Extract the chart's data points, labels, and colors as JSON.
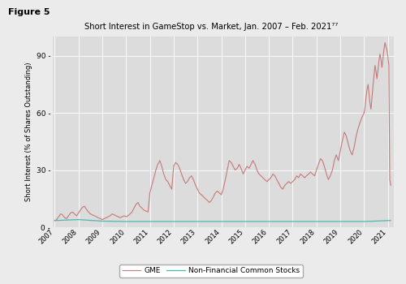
{
  "title": "Short Interest in GameStop vs. Market, Jan. 2007 – Feb. 2021⁷⁷",
  "figure_label": "Figure 5",
  "ylabel": "Short Interest (% of Shares Outstanding)",
  "ylim": [
    0,
    100
  ],
  "yticks": [
    0,
    30,
    60,
    90
  ],
  "gme_color": "#c87878",
  "market_color": "#4db8b0",
  "background_color": "#dcdcdc",
  "fig_background": "#ebebeb",
  "legend_gme": "GME",
  "legend_market": "Non-Financial Common Stocks",
  "gme_data": [
    [
      2007.0,
      3.5
    ],
    [
      2007.08,
      4.0
    ],
    [
      2007.17,
      5.5
    ],
    [
      2007.25,
      7.0
    ],
    [
      2007.33,
      6.5
    ],
    [
      2007.42,
      5.0
    ],
    [
      2007.5,
      4.5
    ],
    [
      2007.58,
      6.0
    ],
    [
      2007.67,
      7.5
    ],
    [
      2007.75,
      8.0
    ],
    [
      2007.83,
      7.0
    ],
    [
      2007.92,
      6.0
    ],
    [
      2008.0,
      7.5
    ],
    [
      2008.08,
      9.0
    ],
    [
      2008.17,
      10.5
    ],
    [
      2008.25,
      11.0
    ],
    [
      2008.33,
      9.5
    ],
    [
      2008.42,
      8.0
    ],
    [
      2008.5,
      7.0
    ],
    [
      2008.58,
      6.5
    ],
    [
      2008.67,
      6.0
    ],
    [
      2008.75,
      5.5
    ],
    [
      2008.83,
      5.0
    ],
    [
      2008.92,
      4.5
    ],
    [
      2009.0,
      4.0
    ],
    [
      2009.08,
      4.5
    ],
    [
      2009.17,
      5.0
    ],
    [
      2009.25,
      5.5
    ],
    [
      2009.33,
      6.0
    ],
    [
      2009.42,
      7.0
    ],
    [
      2009.5,
      6.5
    ],
    [
      2009.58,
      6.0
    ],
    [
      2009.67,
      5.5
    ],
    [
      2009.75,
      5.0
    ],
    [
      2009.83,
      5.5
    ],
    [
      2009.92,
      6.0
    ],
    [
      2010.0,
      5.5
    ],
    [
      2010.08,
      6.0
    ],
    [
      2010.17,
      7.0
    ],
    [
      2010.25,
      8.0
    ],
    [
      2010.33,
      10.0
    ],
    [
      2010.42,
      12.0
    ],
    [
      2010.5,
      13.0
    ],
    [
      2010.58,
      11.0
    ],
    [
      2010.67,
      10.0
    ],
    [
      2010.75,
      9.0
    ],
    [
      2010.83,
      8.5
    ],
    [
      2010.92,
      8.0
    ],
    [
      2011.0,
      18.0
    ],
    [
      2011.08,
      22.0
    ],
    [
      2011.17,
      26.0
    ],
    [
      2011.25,
      30.0
    ],
    [
      2011.33,
      33.0
    ],
    [
      2011.42,
      35.0
    ],
    [
      2011.5,
      32.0
    ],
    [
      2011.58,
      28.0
    ],
    [
      2011.67,
      25.0
    ],
    [
      2011.75,
      24.0
    ],
    [
      2011.83,
      22.0
    ],
    [
      2011.92,
      20.0
    ],
    [
      2012.0,
      32.0
    ],
    [
      2012.08,
      34.0
    ],
    [
      2012.17,
      33.0
    ],
    [
      2012.25,
      31.0
    ],
    [
      2012.33,
      28.0
    ],
    [
      2012.42,
      25.0
    ],
    [
      2012.5,
      23.0
    ],
    [
      2012.58,
      24.0
    ],
    [
      2012.67,
      26.0
    ],
    [
      2012.75,
      27.0
    ],
    [
      2012.83,
      25.0
    ],
    [
      2012.92,
      22.0
    ],
    [
      2013.0,
      20.0
    ],
    [
      2013.08,
      18.0
    ],
    [
      2013.17,
      17.0
    ],
    [
      2013.25,
      16.0
    ],
    [
      2013.33,
      15.0
    ],
    [
      2013.42,
      14.0
    ],
    [
      2013.5,
      13.0
    ],
    [
      2013.58,
      14.0
    ],
    [
      2013.67,
      16.0
    ],
    [
      2013.75,
      18.0
    ],
    [
      2013.83,
      19.0
    ],
    [
      2013.92,
      18.0
    ],
    [
      2014.0,
      17.0
    ],
    [
      2014.08,
      20.0
    ],
    [
      2014.17,
      25.0
    ],
    [
      2014.25,
      30.0
    ],
    [
      2014.33,
      35.0
    ],
    [
      2014.42,
      34.0
    ],
    [
      2014.5,
      32.0
    ],
    [
      2014.58,
      30.0
    ],
    [
      2014.67,
      31.0
    ],
    [
      2014.75,
      33.0
    ],
    [
      2014.83,
      31.0
    ],
    [
      2014.92,
      28.0
    ],
    [
      2015.0,
      30.0
    ],
    [
      2015.08,
      32.0
    ],
    [
      2015.17,
      31.0
    ],
    [
      2015.25,
      33.0
    ],
    [
      2015.33,
      35.0
    ],
    [
      2015.42,
      33.0
    ],
    [
      2015.5,
      30.0
    ],
    [
      2015.58,
      28.0
    ],
    [
      2015.67,
      27.0
    ],
    [
      2015.75,
      26.0
    ],
    [
      2015.83,
      25.0
    ],
    [
      2015.92,
      24.0
    ],
    [
      2016.0,
      25.0
    ],
    [
      2016.08,
      26.0
    ],
    [
      2016.17,
      28.0
    ],
    [
      2016.25,
      27.0
    ],
    [
      2016.33,
      25.0
    ],
    [
      2016.42,
      23.0
    ],
    [
      2016.5,
      21.0
    ],
    [
      2016.58,
      20.0
    ],
    [
      2016.67,
      22.0
    ],
    [
      2016.75,
      23.0
    ],
    [
      2016.83,
      24.0
    ],
    [
      2016.92,
      23.0
    ],
    [
      2017.0,
      24.0
    ],
    [
      2017.08,
      25.0
    ],
    [
      2017.17,
      27.0
    ],
    [
      2017.25,
      26.0
    ],
    [
      2017.33,
      28.0
    ],
    [
      2017.42,
      27.0
    ],
    [
      2017.5,
      26.0
    ],
    [
      2017.58,
      27.0
    ],
    [
      2017.67,
      28.0
    ],
    [
      2017.75,
      29.0
    ],
    [
      2017.83,
      28.0
    ],
    [
      2017.92,
      27.0
    ],
    [
      2018.0,
      30.0
    ],
    [
      2018.08,
      33.0
    ],
    [
      2018.17,
      36.0
    ],
    [
      2018.25,
      35.0
    ],
    [
      2018.33,
      32.0
    ],
    [
      2018.42,
      28.0
    ],
    [
      2018.5,
      25.0
    ],
    [
      2018.58,
      27.0
    ],
    [
      2018.67,
      30.0
    ],
    [
      2018.75,
      35.0
    ],
    [
      2018.83,
      38.0
    ],
    [
      2018.92,
      35.0
    ],
    [
      2019.0,
      40.0
    ],
    [
      2019.08,
      45.0
    ],
    [
      2019.17,
      50.0
    ],
    [
      2019.25,
      48.0
    ],
    [
      2019.33,
      44.0
    ],
    [
      2019.42,
      40.0
    ],
    [
      2019.5,
      38.0
    ],
    [
      2019.58,
      42.0
    ],
    [
      2019.67,
      48.0
    ],
    [
      2019.75,
      52.0
    ],
    [
      2019.83,
      55.0
    ],
    [
      2019.92,
      58.0
    ],
    [
      2020.0,
      60.0
    ],
    [
      2020.04,
      63.0
    ],
    [
      2020.08,
      68.0
    ],
    [
      2020.12,
      72.0
    ],
    [
      2020.17,
      75.0
    ],
    [
      2020.21,
      70.0
    ],
    [
      2020.25,
      65.0
    ],
    [
      2020.29,
      62.0
    ],
    [
      2020.33,
      68.0
    ],
    [
      2020.38,
      75.0
    ],
    [
      2020.42,
      80.0
    ],
    [
      2020.46,
      85.0
    ],
    [
      2020.5,
      82.0
    ],
    [
      2020.54,
      78.0
    ],
    [
      2020.58,
      82.0
    ],
    [
      2020.63,
      88.0
    ],
    [
      2020.67,
      91.0
    ],
    [
      2020.71,
      88.0
    ],
    [
      2020.75,
      84.0
    ],
    [
      2020.79,
      88.0
    ],
    [
      2020.83,
      93.0
    ],
    [
      2020.88,
      97.0
    ],
    [
      2020.92,
      95.0
    ],
    [
      2020.96,
      93.0
    ],
    [
      2021.0,
      90.0
    ],
    [
      2021.04,
      85.0
    ],
    [
      2021.08,
      25.0
    ],
    [
      2021.12,
      22.0
    ]
  ],
  "market_data": [
    [
      2007.0,
      3.5
    ],
    [
      2008.0,
      4.0
    ],
    [
      2009.0,
      3.2
    ],
    [
      2010.0,
      3.0
    ],
    [
      2011.0,
      3.0
    ],
    [
      2012.0,
      3.0
    ],
    [
      2013.0,
      3.0
    ],
    [
      2014.0,
      3.0
    ],
    [
      2015.0,
      3.0
    ],
    [
      2016.0,
      3.0
    ],
    [
      2017.0,
      3.0
    ],
    [
      2018.0,
      3.0
    ],
    [
      2019.0,
      3.0
    ],
    [
      2020.0,
      3.0
    ],
    [
      2020.5,
      3.2
    ],
    [
      2021.0,
      3.5
    ],
    [
      2021.12,
      3.5
    ]
  ],
  "xticks": [
    2007,
    2008,
    2009,
    2010,
    2011,
    2012,
    2013,
    2014,
    2015,
    2016,
    2017,
    2018,
    2019,
    2020,
    2021
  ],
  "xlim": [
    2006.92,
    2021.25
  ]
}
